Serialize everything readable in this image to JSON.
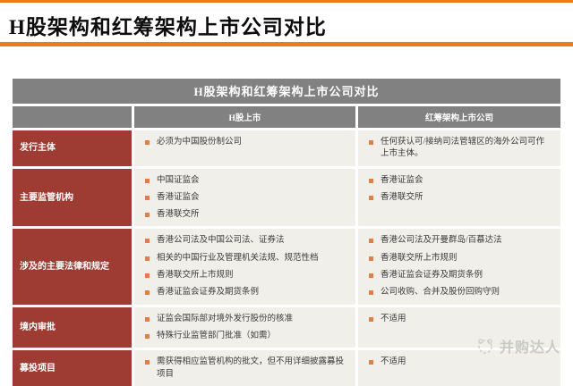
{
  "page": {
    "title": "H股架构和红筹架构上市公司对比",
    "accent_color": "#E87D1E"
  },
  "table": {
    "title": "H股架构和红筹架构上市公司对比",
    "column_headers": [
      "H股上市",
      "红筹架构上市公司"
    ],
    "colors": {
      "header_bg": "#818181",
      "label_bg": "#9E3B32",
      "cell_bg": "#F0EFEA",
      "bullet": "#DD8047"
    },
    "rows": [
      {
        "label": "发行主体",
        "hshare": [
          "必须为中国股份制公司"
        ],
        "redchip": [
          "任何获认可/接纳司法管辖区的海外公司可作上市主体。"
        ]
      },
      {
        "label": "主要监管机构",
        "hshare": [
          "中国证监会",
          "香港证监会",
          "香港联交所"
        ],
        "redchip": [
          "香港证监会",
          "香港联交所"
        ]
      },
      {
        "label": "涉及的主要法律和规定",
        "hshare": [
          "香港公司法及中国公司法、证券法",
          "相关的中国行业及管理机关法规、规范性档",
          "香港联交所上市规则",
          "香港证监会证券及期货条例"
        ],
        "redchip": [
          "香港公司法及开曼群岛/百慕达法",
          "香港联交所上市规则",
          "香港证监会证券及期货条例",
          "公司收购、合并及股份回购守则"
        ]
      },
      {
        "label": "境内审批",
        "hshare": [
          "证监会国际部对境外发行股份的核准",
          "特殊行业监管部门批准（如需）"
        ],
        "redchip": [
          "不适用"
        ]
      },
      {
        "label": "募投项目",
        "hshare": [
          "需获得相应监管机构的批文，但不用详细披露募投项目"
        ],
        "redchip": [
          "不适用"
        ]
      }
    ]
  },
  "watermark": {
    "text": "并购达人"
  }
}
